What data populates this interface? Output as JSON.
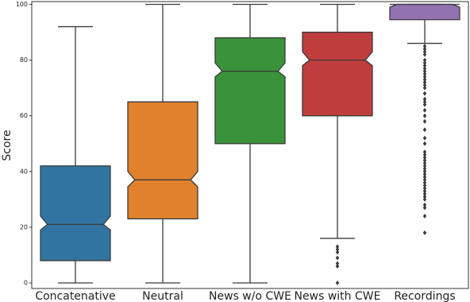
{
  "chart_data": {
    "type": "box",
    "y_label": "Score",
    "categories": [
      "Concatenative",
      "Neutral",
      "News w/o CWE",
      "News with CWE",
      "Recordings"
    ],
    "boxes": [
      {
        "whislo": 0,
        "q1": 8,
        "med": 21,
        "q3": 42,
        "whishi": 92,
        "notch_lo": 19,
        "notch_hi": 24,
        "fliers": [],
        "color": "#3274a1"
      },
      {
        "whislo": 0,
        "q1": 23,
        "med": 37,
        "q3": 65,
        "whishi": 100,
        "notch_lo": 34.5,
        "notch_hi": 40,
        "fliers": [],
        "color": "#e1812c"
      },
      {
        "whislo": 0,
        "q1": 50,
        "med": 76,
        "q3": 88,
        "whishi": 100,
        "notch_lo": 74,
        "notch_hi": 79,
        "fliers": [],
        "color": "#3a923a"
      },
      {
        "whislo": 16,
        "q1": 60,
        "med": 80,
        "q3": 90,
        "whishi": 100,
        "notch_lo": 78,
        "notch_hi": 83,
        "fliers": [
          13,
          12,
          11,
          9,
          7,
          6,
          0
        ],
        "color": "#c03d3e"
      },
      {
        "whislo": 86,
        "q1": 94.5,
        "med": 100,
        "q3": 100,
        "whishi": 100,
        "notch_lo": 99,
        "notch_hi": 100,
        "fliers": [
          85,
          84,
          83,
          82,
          80,
          79,
          78,
          77,
          76,
          75,
          74,
          73,
          72,
          71,
          70,
          68,
          66,
          65,
          64,
          62,
          60,
          58,
          55,
          52,
          50,
          47,
          46,
          45,
          44,
          43,
          42,
          41,
          40,
          39,
          38,
          37,
          36,
          35,
          34,
          33,
          32,
          31,
          30,
          28,
          27,
          24,
          18
        ],
        "color": "#9372b2"
      }
    ],
    "ylim": [
      -2,
      101
    ],
    "yticks": [
      0,
      20,
      40,
      60,
      80,
      100
    ]
  }
}
